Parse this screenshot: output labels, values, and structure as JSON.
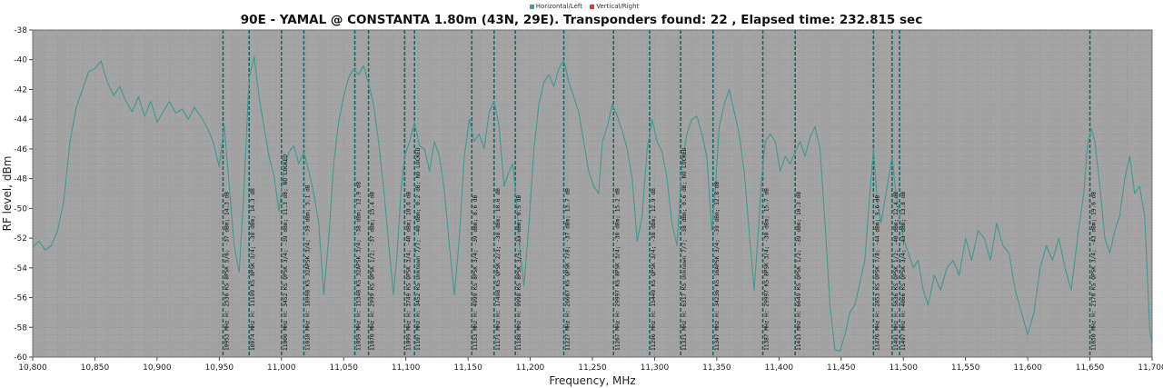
{
  "legend": [
    {
      "label": "Horizontal/Left",
      "color": "#4a9a9a"
    },
    {
      "label": "Vertical/Right",
      "color": "#d83a3a"
    }
  ],
  "colors": {
    "plot_bg": "#a3a3a3",
    "grid": "#8c8c8c",
    "trace": "#3f9a94",
    "marker": "#156b6b"
  },
  "chart_data": {
    "type": "line",
    "title": "90E - YAMAL @ CONSTANTA 1.80m (43N, 29E). Transponders found: 22 , Elapsed time: 232.815 sec",
    "xlabel": "Frequency, MHz",
    "ylabel": "RF level, dBm",
    "xlim": [
      10800,
      11700
    ],
    "ylim": [
      -60,
      -38
    ],
    "xticks": [
      "10,800",
      "10,850",
      "10,900",
      "10,950",
      "11,000",
      "11,050",
      "11,100",
      "11,150",
      "11,200",
      "11,250",
      "11,300",
      "11,350",
      "11,400",
      "11,450",
      "11,500",
      "11,550",
      "11,600",
      "11,650",
      "11,700"
    ],
    "yticks": [
      "-38",
      "-40",
      "-42",
      "-44",
      "-46",
      "-48",
      "-50",
      "-52",
      "-54",
      "-56",
      "-58",
      "-60"
    ],
    "grid": true,
    "series": [
      {
        "name": "Horizontal/Left",
        "points": [
          [
            10800,
            -52.6
          ],
          [
            10805,
            -52.2
          ],
          [
            10810,
            -52.8
          ],
          [
            10815,
            -52.5
          ],
          [
            10820,
            -51.5
          ],
          [
            10825,
            -49.5
          ],
          [
            10830,
            -45.5
          ],
          [
            10835,
            -43.2
          ],
          [
            10840,
            -42.0
          ],
          [
            10845,
            -40.8
          ],
          [
            10850,
            -40.6
          ],
          [
            10855,
            -40.1
          ],
          [
            10860,
            -41.5
          ],
          [
            10865,
            -42.4
          ],
          [
            10870,
            -41.8
          ],
          [
            10875,
            -42.8
          ],
          [
            10880,
            -43.5
          ],
          [
            10885,
            -42.5
          ],
          [
            10890,
            -43.8
          ],
          [
            10895,
            -42.8
          ],
          [
            10900,
            -44.2
          ],
          [
            10905,
            -43.5
          ],
          [
            10910,
            -42.8
          ],
          [
            10915,
            -43.6
          ],
          [
            10920,
            -43.3
          ],
          [
            10925,
            -44.0
          ],
          [
            10930,
            -43.2
          ],
          [
            10935,
            -43.8
          ],
          [
            10940,
            -44.5
          ],
          [
            10945,
            -45.5
          ],
          [
            10950,
            -47.2
          ],
          [
            10954,
            -44.4
          ],
          [
            10958,
            -48.5
          ],
          [
            10962,
            -52.5
          ],
          [
            10966,
            -54.3
          ],
          [
            10970,
            -48.5
          ],
          [
            10974,
            -41.2
          ],
          [
            10978,
            -39.8
          ],
          [
            10982,
            -42.5
          ],
          [
            10986,
            -44.5
          ],
          [
            10990,
            -46.5
          ],
          [
            10994,
            -47.8
          ],
          [
            10998,
            -50.2
          ],
          [
            11002,
            -47.5
          ],
          [
            11006,
            -46.2
          ],
          [
            11010,
            -45.8
          ],
          [
            11014,
            -47.0
          ],
          [
            11018,
            -46.2
          ],
          [
            11022,
            -47.5
          ],
          [
            11026,
            -49.0
          ],
          [
            11030,
            -51.0
          ],
          [
            11034,
            -55.8
          ],
          [
            11038,
            -52.0
          ],
          [
            11042,
            -47.0
          ],
          [
            11046,
            -44.2
          ],
          [
            11050,
            -42.5
          ],
          [
            11054,
            -41.2
          ],
          [
            11058,
            -40.6
          ],
          [
            11062,
            -41.0
          ],
          [
            11066,
            -40.4
          ],
          [
            11070,
            -41.6
          ],
          [
            11074,
            -43.0
          ],
          [
            11078,
            -45.5
          ],
          [
            11082,
            -48.5
          ],
          [
            11086,
            -52.2
          ],
          [
            11090,
            -55.8
          ],
          [
            11093,
            -53.0
          ],
          [
            11096,
            -49.0
          ],
          [
            11099,
            -46.5
          ],
          [
            11103,
            -45.5
          ],
          [
            11107,
            -44.2
          ],
          [
            11111,
            -45.8
          ],
          [
            11115,
            -46.0
          ],
          [
            11119,
            -47.5
          ],
          [
            11123,
            -45.5
          ],
          [
            11127,
            -46.5
          ],
          [
            11131,
            -48.8
          ],
          [
            11135,
            -52.5
          ],
          [
            11139,
            -55.8
          ],
          [
            11143,
            -52.0
          ],
          [
            11147,
            -46.5
          ],
          [
            11151,
            -44.0
          ],
          [
            11155,
            -45.5
          ],
          [
            11159,
            -45.0
          ],
          [
            11163,
            -46.0
          ],
          [
            11167,
            -43.5
          ],
          [
            11171,
            -42.8
          ],
          [
            11175,
            -44.5
          ],
          [
            11179,
            -48.5
          ],
          [
            11183,
            -47.5
          ],
          [
            11186,
            -47.0
          ],
          [
            11189,
            -49.5
          ],
          [
            11192,
            -53.0
          ],
          [
            11195,
            -55.2
          ],
          [
            11199,
            -51.0
          ],
          [
            11203,
            -46.0
          ],
          [
            11207,
            -43.0
          ],
          [
            11211,
            -41.5
          ],
          [
            11215,
            -41.0
          ],
          [
            11219,
            -41.8
          ],
          [
            11223,
            -40.6
          ],
          [
            11227,
            -40.0
          ],
          [
            11231,
            -41.5
          ],
          [
            11235,
            -42.5
          ],
          [
            11239,
            -43.5
          ],
          [
            11243,
            -45.5
          ],
          [
            11247,
            -47.5
          ],
          [
            11251,
            -48.5
          ],
          [
            11255,
            -49.0
          ],
          [
            11258,
            -45.5
          ],
          [
            11262,
            -44.5
          ],
          [
            11266,
            -43.0
          ],
          [
            11270,
            -43.8
          ],
          [
            11274,
            -44.8
          ],
          [
            11278,
            -46.0
          ],
          [
            11282,
            -48.0
          ],
          [
            11286,
            -52.2
          ],
          [
            11290,
            -50.5
          ],
          [
            11294,
            -46.0
          ],
          [
            11298,
            -44.0
          ],
          [
            11302,
            -45.5
          ],
          [
            11306,
            -46.2
          ],
          [
            11310,
            -48.0
          ],
          [
            11314,
            -51.0
          ],
          [
            11318,
            -52.5
          ],
          [
            11322,
            -47.0
          ],
          [
            11326,
            -45.0
          ],
          [
            11330,
            -44.0
          ],
          [
            11334,
            -43.8
          ],
          [
            11338,
            -45.0
          ],
          [
            11342,
            -46.5
          ],
          [
            11346,
            -51.5
          ],
          [
            11349,
            -48.5
          ],
          [
            11352,
            -44.5
          ],
          [
            11356,
            -43.0
          ],
          [
            11360,
            -42.0
          ],
          [
            11364,
            -43.5
          ],
          [
            11368,
            -45.0
          ],
          [
            11372,
            -47.5
          ],
          [
            11376,
            -51.5
          ],
          [
            11380,
            -55.5
          ],
          [
            11383,
            -52.0
          ],
          [
            11386,
            -48.0
          ],
          [
            11389,
            -45.5
          ],
          [
            11393,
            -45.0
          ],
          [
            11397,
            -45.5
          ],
          [
            11401,
            -47.5
          ],
          [
            11405,
            -46.5
          ],
          [
            11409,
            -47.0
          ],
          [
            11413,
            -46.2
          ],
          [
            11417,
            -45.5
          ],
          [
            11421,
            -46.5
          ],
          [
            11425,
            -45.2
          ],
          [
            11429,
            -44.5
          ],
          [
            11433,
            -46.0
          ],
          [
            11437,
            -51.0
          ],
          [
            11441,
            -56.5
          ],
          [
            11445,
            -59.5
          ],
          [
            11449,
            -59.6
          ],
          [
            11453,
            -58.5
          ],
          [
            11457,
            -57.0
          ],
          [
            11461,
            -56.5
          ],
          [
            11465,
            -55.0
          ],
          [
            11469,
            -53.5
          ],
          [
            11473,
            -49.0
          ],
          [
            11476,
            -46.0
          ],
          [
            11479,
            -49.5
          ],
          [
            11482,
            -51.0
          ],
          [
            11485,
            -49.5
          ],
          [
            11488,
            -48.0
          ],
          [
            11491,
            -46.5
          ],
          [
            11494,
            -49.0
          ],
          [
            11497,
            -50.5
          ],
          [
            11500,
            -52.0
          ],
          [
            11504,
            -53.0
          ],
          [
            11508,
            -54.0
          ],
          [
            11512,
            -53.5
          ],
          [
            11516,
            -55.5
          ],
          [
            11520,
            -56.5
          ],
          [
            11525,
            -54.5
          ],
          [
            11530,
            -55.5
          ],
          [
            11535,
            -54.0
          ],
          [
            11540,
            -53.5
          ],
          [
            11545,
            -54.5
          ],
          [
            11550,
            -52.0
          ],
          [
            11555,
            -53.5
          ],
          [
            11560,
            -51.5
          ],
          [
            11565,
            -52.0
          ],
          [
            11570,
            -53.5
          ],
          [
            11575,
            -51.0
          ],
          [
            11580,
            -52.5
          ],
          [
            11585,
            -53.0
          ],
          [
            11590,
            -55.5
          ],
          [
            11595,
            -57.0
          ],
          [
            11600,
            -58.5
          ],
          [
            11605,
            -57.0
          ],
          [
            11610,
            -54.0
          ],
          [
            11615,
            -52.5
          ],
          [
            11620,
            -53.5
          ],
          [
            11625,
            -52.0
          ],
          [
            11630,
            -54.0
          ],
          [
            11635,
            -55.5
          ],
          [
            11640,
            -52.0
          ],
          [
            11645,
            -49.0
          ],
          [
            11648,
            -45.8
          ],
          [
            11651,
            -44.6
          ],
          [
            11654,
            -45.5
          ],
          [
            11658,
            -48.5
          ],
          [
            11662,
            -52.0
          ],
          [
            11666,
            -53.0
          ],
          [
            11670,
            -51.5
          ],
          [
            11674,
            -50.5
          ],
          [
            11678,
            -48.0
          ],
          [
            11682,
            -46.5
          ],
          [
            11686,
            -49.0
          ],
          [
            11690,
            -48.5
          ],
          [
            11694,
            -50.5
          ],
          [
            11698,
            -58.0
          ],
          [
            11700,
            -59.2
          ]
        ]
      }
    ],
    "transponders": [
      {
        "freq": 10953,
        "label": "10953 MHz H: 2536 KS 8PSK 5/6; -37 dBm; 14.3 dB"
      },
      {
        "freq": 10974,
        "label": "10974 MHz H: 11199 KS 8PSK 3/4; -38 dBm; 14.3 dB"
      },
      {
        "freq": 11000,
        "label": "11000 MHz H: 3452 KS QPSK 3/4; -39 dBm; 11.3 dB; NO LOCKED"
      },
      {
        "freq": 11018,
        "label": "11018 MHz H: 18998 KS 32APSK 3/4; -39 dBm; 5.1 dB"
      },
      {
        "freq": 11059,
        "label": "11059 MHz H: 15348 KS 32APSK 3/4; -38 dBm; 12.9 dB"
      },
      {
        "freq": 11070,
        "label": "11070 MHz H: 2999 KS QPSK 1/2; -37 dBm; 15.4 dB"
      },
      {
        "freq": 11099,
        "label": "11099 MHz H: 3749 KS QPSK 3/4; -40 dBm; 10.6 dB"
      },
      {
        "freq": 11107,
        "label": "11107 MHz H: 3452 KS Unknown 7/7; -40 dBm; 0.2 dB; NO LOCKED"
      },
      {
        "freq": 11153,
        "label": "11153 MHz H: 4999 KS 8PSK 3/4; -39 dBm; 8.6 dB"
      },
      {
        "freq": 11171,
        "label": "11171 MHz H: 17498 KS QPSK 2/3; -38 dBm; 10.6 dB"
      },
      {
        "freq": 11188,
        "label": "11188 MHz H: 9998 KS 8PSK 3/5; -33 dBm; 6.5 dB"
      },
      {
        "freq": 11227,
        "label": "11227 MHz H: 26667 KS QPSK 7/8; -37 dBm; 13.7 dB"
      },
      {
        "freq": 11267,
        "label": "11267 MHz H: 29997 KS 8PSK 3/4; -36 dBm; 15.2 dB"
      },
      {
        "freq": 11296,
        "label": "11296 MHz H: 15449 KS QPSK 3/4; -38 dBm; 12.9 dB"
      },
      {
        "freq": 11321,
        "label": "11321 MHz H: 6317 KS Unknown 7/7; -38 dBm; 0.6 dB; NO LOCKED"
      },
      {
        "freq": 11347,
        "label": "11347 MHz H: 34236 KS 16APSK 3/4; -39 dBm; 12.8 dB"
      },
      {
        "freq": 11387,
        "label": "11387 MHz H: 29997 KS 8PSK 3/4; -38 dBm; 15.7 dB"
      },
      {
        "freq": 11413,
        "label": "11413 MHz H: 6649 KS QPSK 1/2; -39 dBm; 10.3 dB"
      },
      {
        "freq": 11476,
        "label": "11476 MHz H: 2853 KS QPSK 7/8; -44 dBm; 9.6 dB"
      },
      {
        "freq": 11491,
        "label": "11491 MHz H: 5636 KS QPSK 1/2; -40 dBm; 12.4 dB"
      },
      {
        "freq": 11497,
        "label": "11497 MHz H: 4066 KS QPSK 3/4; -43 dBm; 13.8 dB"
      },
      {
        "freq": 11650,
        "label": "11650 MHz H: 2170 KS QPSK 3/4; -43 dBm; 19.6 dB"
      }
    ]
  }
}
